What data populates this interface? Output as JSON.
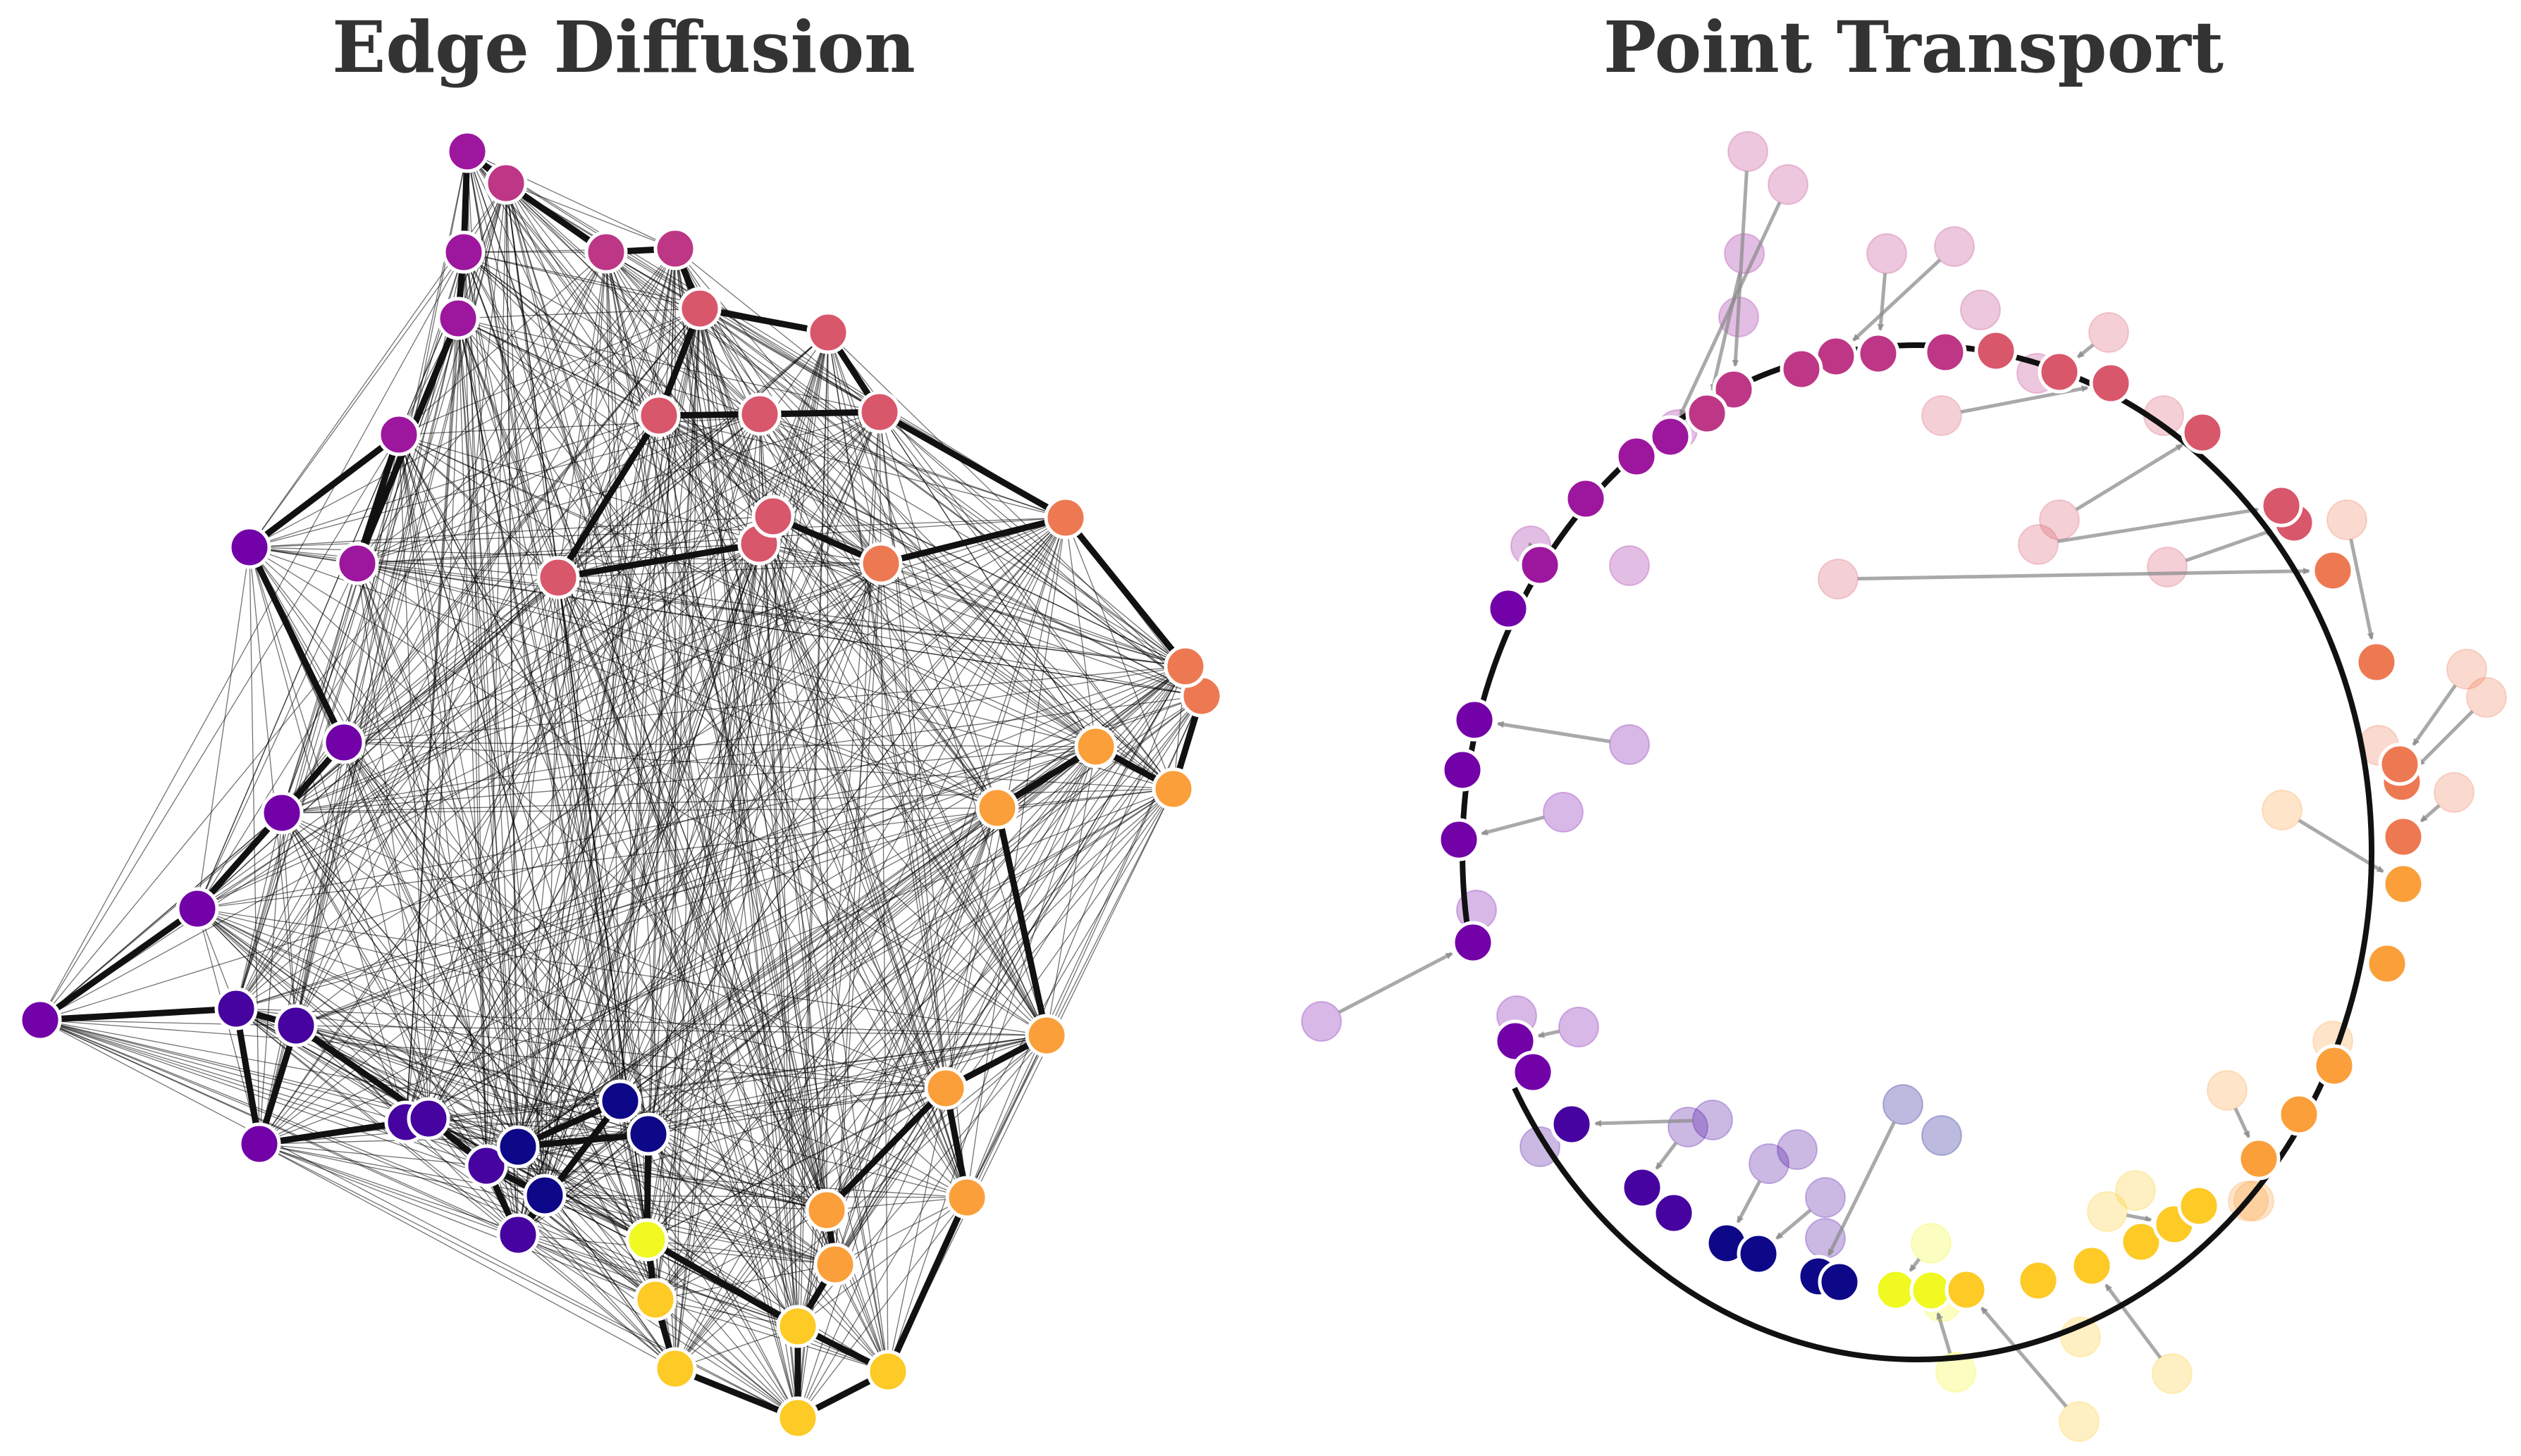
{
  "panels": {
    "left": {
      "title": "Edge Diffusion"
    },
    "right": {
      "title": "Point Transport"
    }
  },
  "colors": {
    "node_stroke": "#ffffff",
    "edge_strong": "#111111",
    "edge_weak": "#000000",
    "arrow": "#8c8c8c",
    "palette": [
      "#0d0887",
      "#46039f",
      "#7201a8",
      "#9c179e",
      "#bd3786",
      "#d8576b",
      "#ed7953",
      "#fb9f3a",
      "#fdca26",
      "#f0f921"
    ]
  }
}
